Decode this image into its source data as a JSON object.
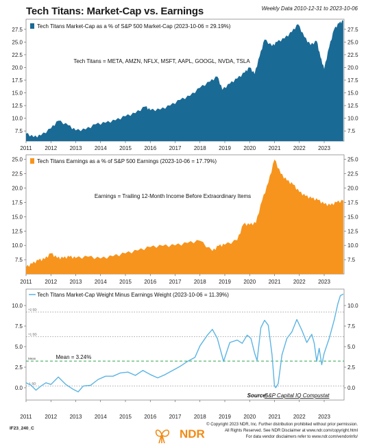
{
  "title": "Tech Titans: Market-Cap vs. Earnings",
  "subtitle": "Weekly Data 2010-12-31 to 2023-10-06",
  "colors": {
    "panel1": "#1a6a96",
    "panel2": "#f7941d",
    "panel3": "#5ab4e3",
    "mean_line": "#2fa34a"
  },
  "chart_data": [
    {
      "type": "area",
      "legend": "Tech Titans Market-Cap as a % of S&P 500 Market-Cap (2023-10-06 = 29.19%)",
      "annotation": "Tech Titans = META, AMZN, NFLX, MSFT, AAPL, GOOGL, NVDA, TSLA",
      "x_ticks": [
        "2011",
        "2012",
        "2013",
        "2014",
        "2015",
        "2016",
        "2017",
        "2018",
        "2019",
        "2020",
        "2021",
        "2022",
        "2023"
      ],
      "y_ticks": [
        "7.5",
        "10.0",
        "12.5",
        "15.0",
        "17.5",
        "20.0",
        "22.5",
        "25.0",
        "27.5"
      ],
      "ylim": [
        5.5,
        29.5
      ],
      "xlim": [
        2011.0,
        2023.8
      ],
      "x": [
        2011.0,
        2011.3,
        2011.6,
        2012.0,
        2012.3,
        2012.7,
        2013.0,
        2013.4,
        2013.8,
        2014.2,
        2014.6,
        2015.0,
        2015.4,
        2015.8,
        2016.0,
        2016.4,
        2016.8,
        2017.2,
        2017.6,
        2018.0,
        2018.4,
        2018.7,
        2018.9,
        2019.2,
        2019.5,
        2019.8,
        2020.0,
        2020.2,
        2020.4,
        2020.6,
        2020.9,
        2021.1,
        2021.4,
        2021.7,
        2021.95,
        2022.2,
        2022.45,
        2022.7,
        2022.85,
        2023.0,
        2023.2,
        2023.4,
        2023.6,
        2023.77
      ],
      "values": [
        7.0,
        6.3,
        6.6,
        8.0,
        9.5,
        8.6,
        7.6,
        7.8,
        8.8,
        9.1,
        9.6,
        10.4,
        11.0,
        12.3,
        11.6,
        11.7,
        12.5,
        13.6,
        14.4,
        16.0,
        17.2,
        18.2,
        15.6,
        16.8,
        17.8,
        19.0,
        20.0,
        18.7,
        22.2,
        25.5,
        24.2,
        25.0,
        25.7,
        27.0,
        28.5,
        26.0,
        24.4,
        25.2,
        22.0,
        19.7,
        24.0,
        27.5,
        28.7,
        29.19
      ]
    },
    {
      "type": "area",
      "legend": "Tech Titans Earnings as a % of S&P 500 Earnings (2023-10-06 = 17.79%)",
      "annotation": "Earnings = Trailing 12-Month Income Before Extraordinary Items",
      "x_ticks": [
        "2011",
        "2012",
        "2013",
        "2014",
        "2015",
        "2016",
        "2017",
        "2018",
        "2019",
        "2020",
        "2021",
        "2022",
        "2023"
      ],
      "y_ticks": [
        "7.5",
        "10.0",
        "12.5",
        "15.0",
        "17.5",
        "20.0",
        "22.5",
        "25.0"
      ],
      "ylim": [
        5.0,
        25.8
      ],
      "xlim": [
        2011.0,
        2023.8
      ],
      "x": [
        2011.0,
        2011.25,
        2011.5,
        2011.75,
        2012.0,
        2012.25,
        2012.5,
        2012.75,
        2013.0,
        2013.5,
        2014.0,
        2014.5,
        2015.0,
        2015.5,
        2016.0,
        2016.5,
        2017.0,
        2017.5,
        2018.0,
        2018.5,
        2018.75,
        2019.0,
        2019.5,
        2019.75,
        2020.0,
        2020.25,
        2020.5,
        2020.75,
        2021.0,
        2021.25,
        2021.5,
        2021.75,
        2022.0,
        2022.25,
        2022.5,
        2022.75,
        2023.0,
        2023.25,
        2023.5,
        2023.77
      ],
      "values": [
        6.2,
        6.8,
        7.4,
        7.6,
        8.6,
        7.8,
        7.8,
        8.0,
        7.8,
        8.0,
        7.7,
        8.1,
        8.6,
        9.1,
        9.7,
        9.9,
        10.0,
        10.4,
        10.8,
        9.0,
        9.9,
        10.1,
        10.9,
        13.7,
        13.6,
        13.9,
        17.8,
        20.9,
        25.0,
        22.5,
        21.3,
        20.6,
        19.3,
        18.6,
        18.2,
        17.9,
        17.2,
        17.0,
        17.5,
        17.79
      ]
    },
    {
      "type": "line",
      "legend": "Tech Titans Market-Cap Weight Minus Earnings Weight (2023-10-06 = 11.39%)",
      "mean_label": "Mean = 3.24%",
      "mean": 3.24,
      "sd_lines": [
        {
          "label": "+2 SD",
          "value": 9.2
        },
        {
          "label": "+1 SD",
          "value": 6.2
        },
        {
          "label": "Mean",
          "value": 3.24
        },
        {
          "label": "-1 SD",
          "value": 0.2
        }
      ],
      "source_label": "Source:",
      "source": "S&P Capital IQ Compustat",
      "x_ticks": [
        "2011",
        "2012",
        "2013",
        "2014",
        "2015",
        "2016",
        "2017",
        "2018",
        "2019",
        "2020",
        "2021",
        "2022",
        "2023"
      ],
      "y_ticks": [
        "0.0",
        "2.5",
        "5.0",
        "7.5",
        "10.0"
      ],
      "ylim": [
        -1.5,
        12.0
      ],
      "xlim": [
        2011.0,
        2023.8
      ],
      "x": [
        2011.0,
        2011.2,
        2011.4,
        2011.6,
        2011.8,
        2012.0,
        2012.3,
        2012.6,
        2012.9,
        2013.1,
        2013.3,
        2013.6,
        2013.9,
        2014.2,
        2014.5,
        2014.8,
        2015.1,
        2015.4,
        2015.7,
        2016.0,
        2016.3,
        2016.6,
        2016.9,
        2017.2,
        2017.5,
        2017.8,
        2018.0,
        2018.3,
        2018.5,
        2018.7,
        2018.95,
        2019.2,
        2019.5,
        2019.7,
        2019.9,
        2020.05,
        2020.2,
        2020.3,
        2020.45,
        2020.6,
        2020.75,
        2020.9,
        2021.0,
        2021.05,
        2021.15,
        2021.3,
        2021.5,
        2021.7,
        2021.9,
        2022.1,
        2022.3,
        2022.5,
        2022.6,
        2022.7,
        2022.8,
        2022.9,
        2023.0,
        2023.2,
        2023.4,
        2023.55,
        2023.65,
        2023.77
      ],
      "values": [
        0.6,
        0.3,
        -0.3,
        0.2,
        0.6,
        0.4,
        1.3,
        0.4,
        -0.2,
        -0.5,
        0.2,
        0.3,
        1.0,
        1.4,
        1.4,
        1.8,
        1.9,
        1.5,
        2.1,
        1.6,
        1.2,
        1.6,
        2.1,
        2.6,
        3.2,
        3.7,
        5.1,
        6.4,
        7.1,
        6.0,
        3.2,
        5.5,
        5.8,
        5.4,
        6.4,
        6.0,
        4.2,
        3.3,
        7.3,
        8.2,
        7.6,
        4.0,
        0.2,
        0.0,
        0.5,
        4.0,
        6.0,
        6.8,
        8.3,
        7.0,
        5.5,
        6.5,
        5.4,
        3.2,
        4.8,
        2.8,
        4.2,
        6.0,
        8.2,
        10.2,
        11.2,
        11.39
      ]
    }
  ],
  "footer": {
    "id": "IF23_240_C",
    "lines": [
      "© Copyright 2023 NDR, Inc. Further distribution prohibited without prior permission.",
      "All Rights Reserved. See NDR Disclaimer at www.ndr.com/copyright.html",
      "For data vendor disclaimers refer to www.ndr.com/vendorinfo/"
    ],
    "logo": "NDR"
  }
}
